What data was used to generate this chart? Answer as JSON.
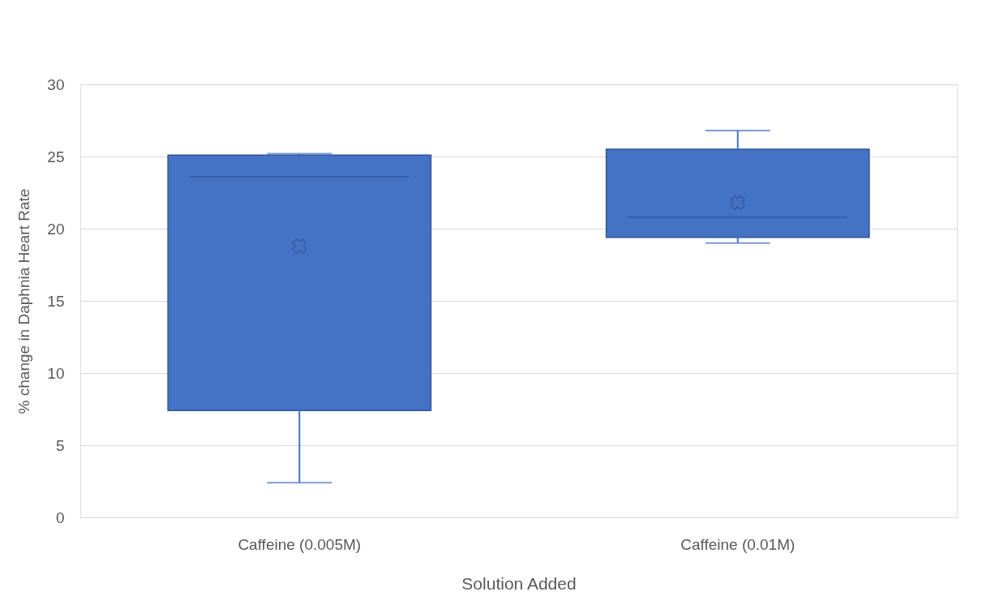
{
  "chart_data": {
    "type": "box",
    "xlabel": "Solution Added",
    "ylabel": "% change in Daphnia Heart Rate",
    "categories": [
      "Caffeine (0.005M)",
      "Caffeine (0.01M)"
    ],
    "series": [
      {
        "color": "#4472c4",
        "boxes": [
          {
            "low": 2.4,
            "q1": 7.4,
            "median": 23.6,
            "q3": 25.1,
            "high": 25.2,
            "mean": 18.8
          },
          {
            "low": 19.0,
            "q1": 19.4,
            "median": 20.8,
            "q3": 25.5,
            "high": 26.8,
            "mean": 21.8
          }
        ]
      }
    ],
    "ylim": [
      0,
      30
    ],
    "yticks": [
      0,
      5,
      10,
      15,
      20,
      25,
      30
    ],
    "grid": "y"
  }
}
